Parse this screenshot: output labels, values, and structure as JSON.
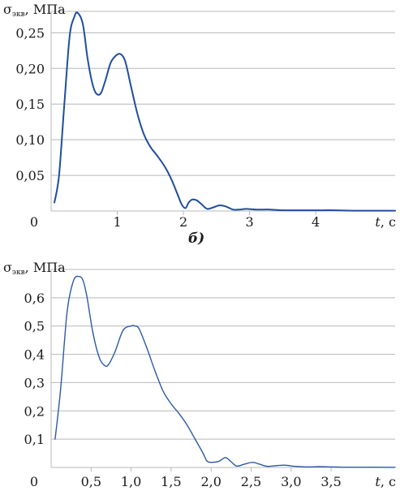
{
  "chart_data": [
    {
      "type": "line",
      "ylabel_symbol": "σ",
      "ylabel_subscript": "экв",
      "ylabel_unit": ", МПа",
      "xlabel_var": "t",
      "xlabel_unit": ", с",
      "origin_label": "0",
      "xlim": [
        0,
        5.2
      ],
      "ylim": [
        0,
        0.28
      ],
      "xticks": [
        {
          "value": 1,
          "label": "1"
        },
        {
          "value": 2,
          "label": "2"
        },
        {
          "value": 3,
          "label": "3"
        },
        {
          "value": 4,
          "label": "4"
        }
      ],
      "yticks": [
        {
          "value": 0.05,
          "label": "0,05"
        },
        {
          "value": 0.1,
          "label": "0,10"
        },
        {
          "value": 0.15,
          "label": "0,15"
        },
        {
          "value": 0.2,
          "label": "0,20"
        },
        {
          "value": 0.25,
          "label": "0,25"
        }
      ],
      "grid": true,
      "line_color": "#1f4e9c",
      "series": [
        {
          "x": [
            0.05,
            0.12,
            0.2,
            0.28,
            0.35,
            0.4,
            0.48,
            0.55,
            0.62,
            0.68,
            0.75,
            0.82,
            0.9,
            0.98,
            1.05,
            1.12,
            1.2,
            1.3,
            1.4,
            1.5,
            1.6,
            1.72,
            1.82,
            1.9,
            1.97,
            2.03,
            2.08,
            2.13,
            2.2,
            2.28,
            2.36,
            2.45,
            2.55,
            2.65,
            2.75,
            2.85,
            2.95,
            3.1,
            3.3,
            3.5,
            3.7,
            4.0,
            4.3,
            4.6,
            5.0,
            5.2
          ],
          "y": [
            0.012,
            0.05,
            0.15,
            0.245,
            0.272,
            0.278,
            0.262,
            0.215,
            0.18,
            0.165,
            0.165,
            0.183,
            0.208,
            0.218,
            0.22,
            0.21,
            0.178,
            0.138,
            0.108,
            0.09,
            0.078,
            0.062,
            0.044,
            0.026,
            0.01,
            0.004,
            0.012,
            0.016,
            0.015,
            0.009,
            0.003,
            0.005,
            0.008,
            0.006,
            0.002,
            0.002,
            0.003,
            0.002,
            0.002,
            0.001,
            0.001,
            0.001,
            0.001,
            0.0005,
            0.0005,
            0.0005
          ]
        }
      ]
    },
    {
      "type": "line",
      "ylabel_symbol": "σ",
      "ylabel_subscript": "экв",
      "ylabel_unit": ", МПа",
      "xlabel_var": "t",
      "xlabel_unit": ", с",
      "origin_label": "0",
      "xlim": [
        0,
        4.3
      ],
      "ylim": [
        0,
        0.7
      ],
      "xticks": [
        {
          "value": 0.5,
          "label": "0,5"
        },
        {
          "value": 1.0,
          "label": "1,0"
        },
        {
          "value": 1.5,
          "label": "1,5"
        },
        {
          "value": 2.0,
          "label": "2,0"
        },
        {
          "value": 2.5,
          "label": "2,5"
        },
        {
          "value": 3.0,
          "label": "3,0"
        },
        {
          "value": 3.5,
          "label": "3,5"
        }
      ],
      "yticks": [
        {
          "value": 0.1,
          "label": "0,1"
        },
        {
          "value": 0.2,
          "label": "0,2"
        },
        {
          "value": 0.3,
          "label": "0,3"
        },
        {
          "value": 0.4,
          "label": "0,4"
        },
        {
          "value": 0.5,
          "label": "0,5"
        },
        {
          "value": 0.6,
          "label": "0,6"
        }
      ],
      "grid": true,
      "line_color": "#2b5aa6",
      "series": [
        {
          "x": [
            0.05,
            0.12,
            0.2,
            0.28,
            0.35,
            0.4,
            0.45,
            0.52,
            0.6,
            0.67,
            0.72,
            0.8,
            0.9,
            1.0,
            1.05,
            1.1,
            1.2,
            1.3,
            1.4,
            1.5,
            1.6,
            1.7,
            1.8,
            1.9,
            1.95,
            2.02,
            2.1,
            2.18,
            2.25,
            2.32,
            2.42,
            2.52,
            2.6,
            2.7,
            2.8,
            2.92,
            3.05,
            3.2,
            3.35,
            3.5,
            3.65,
            3.8,
            4.0,
            4.2,
            4.3
          ],
          "y": [
            0.1,
            0.28,
            0.55,
            0.66,
            0.675,
            0.66,
            0.6,
            0.48,
            0.39,
            0.36,
            0.365,
            0.41,
            0.485,
            0.5,
            0.5,
            0.49,
            0.42,
            0.34,
            0.27,
            0.225,
            0.19,
            0.15,
            0.1,
            0.05,
            0.022,
            0.018,
            0.022,
            0.035,
            0.02,
            0.005,
            0.012,
            0.018,
            0.012,
            0.004,
            0.006,
            0.008,
            0.004,
            0.002,
            0.003,
            0.002,
            0.001,
            0.001,
            0.001,
            0.0005,
            0.0005
          ]
        }
      ]
    }
  ],
  "panel_label": "б)"
}
